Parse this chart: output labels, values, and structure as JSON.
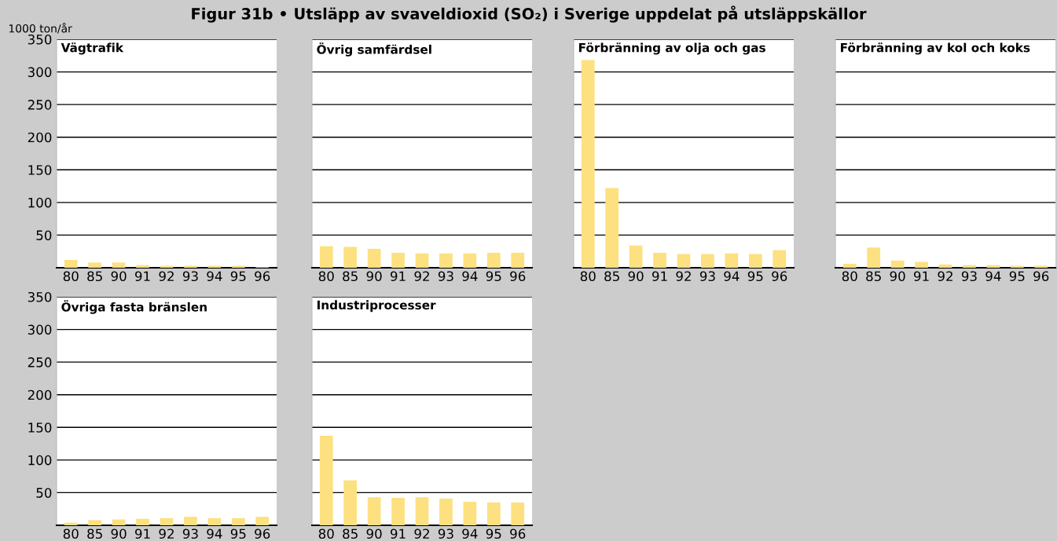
{
  "chart_data": [
    {
      "type": "bar",
      "title": "Vägtrafik",
      "ylabel": "1000 ton/år",
      "annotations": [
        "Figur 31b • Utsläpp av svaveldioxid (SO₂) i Sverige uppdelat på utsläppskällor"
      ],
      "categories": [
        "80",
        "85",
        "90",
        "91",
        "92",
        "93",
        "94",
        "95",
        "96"
      ],
      "values": [
        12,
        8,
        8,
        4,
        3,
        3,
        3,
        3,
        1
      ],
      "color": "#fde07f",
      "ylim": [
        0,
        350
      ],
      "yticks": [
        50,
        100,
        150,
        200,
        250,
        300,
        350
      ],
      "grid": "y",
      "legend": false
    },
    {
      "type": "bar",
      "title": "Övrig samfärdsel",
      "categories": [
        "80",
        "85",
        "90",
        "91",
        "92",
        "93",
        "94",
        "95",
        "96"
      ],
      "values": [
        33,
        32,
        29,
        23,
        22,
        22,
        22,
        23,
        23
      ],
      "color": "#fde07f",
      "ylim": [
        0,
        350
      ],
      "yticks": [
        50,
        100,
        150,
        200,
        250,
        300,
        350
      ],
      "grid": "y",
      "legend": false,
      "tick_labels": "x"
    },
    {
      "type": "bar",
      "title": "Förbränning av olja och gas",
      "categories": [
        "80",
        "85",
        "90",
        "91",
        "92",
        "93",
        "94",
        "95",
        "96"
      ],
      "values": [
        318,
        122,
        34,
        23,
        21,
        21,
        22,
        21,
        27
      ],
      "color": "#fde07f",
      "ylim": [
        0,
        350
      ],
      "yticks": [
        50,
        100,
        150,
        200,
        250,
        300,
        350
      ],
      "grid": "y",
      "legend": false,
      "tick_labels": "x"
    },
    {
      "type": "bar",
      "title": "Förbränning av kol och koks",
      "categories": [
        "80",
        "85",
        "90",
        "91",
        "92",
        "93",
        "94",
        "95",
        "96"
      ],
      "values": [
        6,
        31,
        11,
        9,
        5,
        4,
        4,
        3,
        3
      ],
      "color": "#fde07f",
      "ylim": [
        0,
        350
      ],
      "yticks": [
        50,
        100,
        150,
        200,
        250,
        300,
        350
      ],
      "grid": "y",
      "legend": false,
      "tick_labels": "x"
    },
    {
      "type": "bar",
      "title": "Övriga fasta bränslen",
      "categories": [
        "80",
        "85",
        "90",
        "91",
        "92",
        "93",
        "94",
        "95",
        "96"
      ],
      "values": [
        4,
        8,
        9,
        10,
        11,
        13,
        11,
        11,
        13
      ],
      "color": "#fde07f",
      "ylim": [
        0,
        350
      ],
      "yticks": [
        50,
        100,
        150,
        200,
        250,
        300,
        350
      ],
      "grid": "y",
      "legend": false
    },
    {
      "type": "bar",
      "title": "Industriprocesser",
      "categories": [
        "80",
        "85",
        "90",
        "91",
        "92",
        "93",
        "94",
        "95",
        "96"
      ],
      "values": [
        137,
        69,
        43,
        42,
        43,
        41,
        36,
        35,
        35
      ],
      "color": "#fde07f",
      "ylim": [
        0,
        350
      ],
      "yticks": [
        50,
        100,
        150,
        200,
        250,
        300,
        350
      ],
      "grid": "y",
      "legend": false,
      "tick_labels": "x"
    }
  ]
}
